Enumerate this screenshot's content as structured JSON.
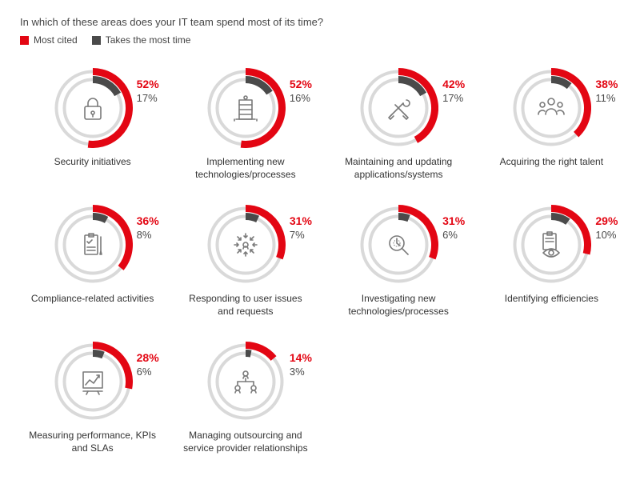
{
  "title": "In which of these areas does your IT team spend most of its time?",
  "legend": {
    "most_cited": "Most cited",
    "most_time": "Takes the most time"
  },
  "colors": {
    "red": "#e30613",
    "dark": "#4a4a4a",
    "track": "#d9d9d9",
    "iconStroke": "#7a7a7a",
    "bg": "#ffffff"
  },
  "chart": {
    "type": "donut-multiples",
    "donut_outer": 50,
    "track_thickness": 4,
    "red_thickness": 9,
    "dark_thickness": 9,
    "gap_between_rings": 1,
    "start_angle_deg": -90,
    "label_fontsize": 12,
    "value_fontsize_red": 14,
    "value_fontsize_gray": 13
  },
  "items": [
    {
      "label": "Security initiatives",
      "most_cited": 52,
      "most_time": 17,
      "icon": "lock"
    },
    {
      "label": "Implementing new technologies/processes",
      "most_cited": 52,
      "most_time": 16,
      "icon": "building"
    },
    {
      "label": "Maintaining and updating applications/systems",
      "most_cited": 42,
      "most_time": 17,
      "icon": "tools"
    },
    {
      "label": "Acquiring the right talent",
      "most_cited": 38,
      "most_time": 11,
      "icon": "people"
    },
    {
      "label": "Compliance-related activities",
      "most_cited": 36,
      "most_time": 8,
      "icon": "checklist"
    },
    {
      "label": "Responding to user issues and requests",
      "most_cited": 31,
      "most_time": 7,
      "icon": "inward"
    },
    {
      "label": "Investigating new technologies/processes",
      "most_cited": 31,
      "most_time": 6,
      "icon": "magnify"
    },
    {
      "label": "Identifying efficiencies",
      "most_cited": 29,
      "most_time": 10,
      "icon": "eyeboard"
    },
    {
      "label": "Measuring performance, KPIs and SLAs",
      "most_cited": 28,
      "most_time": 6,
      "icon": "chart"
    },
    {
      "label": "Managing outsourcing and service provider relationships",
      "most_cited": 14,
      "most_time": 3,
      "icon": "hierarchy"
    }
  ]
}
